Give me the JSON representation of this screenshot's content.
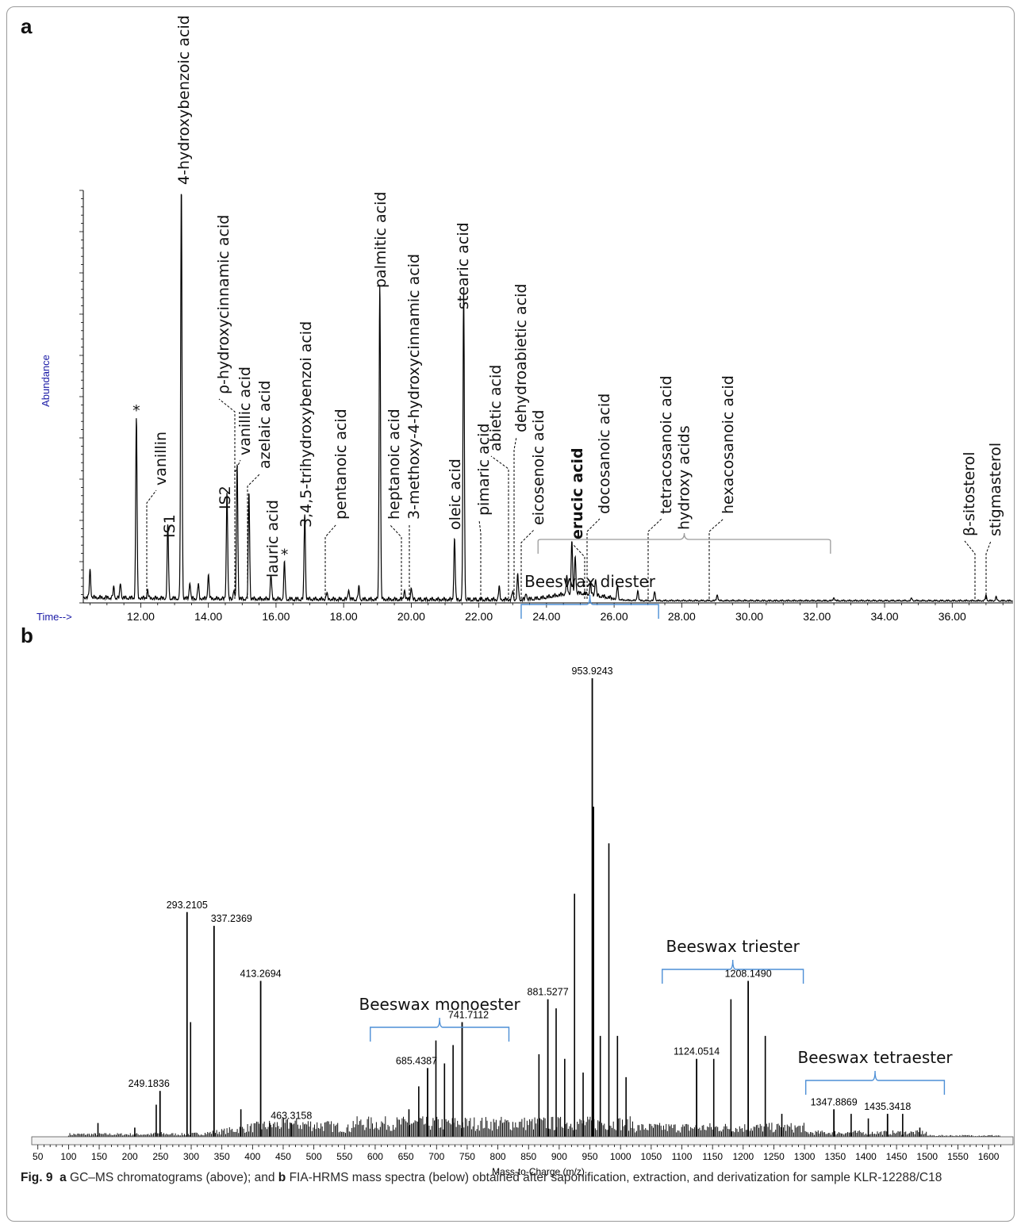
{
  "panel_a_letter": "a",
  "panel_b_letter": "b",
  "caption": {
    "figure_label": "Fig. 9",
    "part_a_letter": "a",
    "part_a_text": "GC–MS chromatograms (above); and",
    "part_b_letter": "b",
    "part_b_text": "FIA-HRMS mass spectra (below) obtained after saponification, extraction, and derivatization for sample KLR-12288/C18"
  },
  "chart_data": [
    {
      "type": "line",
      "panel": "a",
      "ylabel": "Abundance",
      "xlabel": "Time-->",
      "xlim": [
        10.3,
        37.8
      ],
      "ylim": [
        0,
        100
      ],
      "x_ticks": [
        "12.00",
        "14.00",
        "16.00",
        "18.00",
        "20.00",
        "22.00",
        "24.00",
        "26.00",
        "28.00",
        "30.00",
        "32.00",
        "34.00",
        "36.00"
      ],
      "peaks": [
        {
          "rt": 10.5,
          "height": 6.8
        },
        {
          "rt": 11.2,
          "height": 2.5
        },
        {
          "rt": 11.4,
          "height": 3.5
        },
        {
          "rt": 11.87,
          "height": 44,
          "label": "*"
        },
        {
          "rt": 12.2,
          "height": 2,
          "label": "vanillin"
        },
        {
          "rt": 12.8,
          "height": 18,
          "label": "IS1"
        },
        {
          "rt": 13.2,
          "height": 100,
          "label": "4-hydroxybenzoic acid"
        },
        {
          "rt": 13.45,
          "height": 4
        },
        {
          "rt": 13.7,
          "height": 3.5
        },
        {
          "rt": 14.0,
          "height": 6
        },
        {
          "rt": 14.55,
          "height": 26,
          "label": "IS2"
        },
        {
          "rt": 14.75,
          "height": 2,
          "label": "ρ-hydroxycinnamic acid"
        },
        {
          "rt": 14.85,
          "height": 33,
          "label": "vanillic acid"
        },
        {
          "rt": 15.2,
          "height": 26,
          "label": "azelaic acid"
        },
        {
          "rt": 15.85,
          "height": 6,
          "label": "lauric acid"
        },
        {
          "rt": 16.25,
          "height": 9,
          "label": "*"
        },
        {
          "rt": 16.85,
          "height": 21,
          "label": "3,4,5-trihydroxybenzoi acid"
        },
        {
          "rt": 17.5,
          "height": 1.5,
          "label": "pentanoic acid"
        },
        {
          "rt": 18.15,
          "height": 2.5
        },
        {
          "rt": 18.45,
          "height": 3
        },
        {
          "rt": 19.07,
          "height": 77,
          "label": "palmitic acid"
        },
        {
          "rt": 19.8,
          "height": 2.5,
          "label": "heptanoic acid"
        },
        {
          "rt": 20.0,
          "height": 3,
          "label": "3-methoxy-4-hydroxycinnamic acid"
        },
        {
          "rt": 21.28,
          "height": 15,
          "label": "oleic acid"
        },
        {
          "rt": 21.55,
          "height": 75,
          "label": "stearic acid"
        },
        {
          "rt": 22.6,
          "height": 3,
          "label": "pimaric acid"
        },
        {
          "rt": 23.0,
          "height": 2,
          "label": "abietic acid"
        },
        {
          "rt": 23.15,
          "height": 6,
          "label": "dehydroabietic acid"
        },
        {
          "rt": 23.4,
          "height": 1.5,
          "label": "eicosenoic acid"
        },
        {
          "rt": 24.6,
          "height": 4
        },
        {
          "rt": 24.75,
          "height": 13
        },
        {
          "rt": 24.85,
          "height": 9
        },
        {
          "rt": 25.3,
          "height": 2.5,
          "label": "erucic acid"
        },
        {
          "rt": 25.45,
          "height": 4,
          "label": "docosanoic acid"
        },
        {
          "rt": 26.1,
          "height": 3.5
        },
        {
          "rt": 26.7,
          "height": 2.5
        },
        {
          "rt": 27.2,
          "height": 2.2,
          "label": "tetracosanoic acid"
        },
        {
          "rt": 29.05,
          "height": 1.5,
          "label": "hexacosanoic acid"
        },
        {
          "rt": 32.5,
          "height": 0.8
        },
        {
          "rt": 34.8,
          "height": 0.6
        },
        {
          "rt": 37.0,
          "height": 1.3,
          "label": "β-sitosterol"
        },
        {
          "rt": 37.3,
          "height": 0.9,
          "label": "stigmasterol"
        }
      ],
      "bracket": {
        "label": "hydroxy acids",
        "from": 23.75,
        "to": 32.4
      }
    },
    {
      "type": "bar",
      "panel": "b",
      "xlabel": "Mass-to-Charge (m/z)",
      "xlim": [
        40,
        1640
      ],
      "ylim": [
        0,
        100
      ],
      "x_ticks": [
        "50",
        "100",
        "150",
        "200",
        "250",
        "300",
        "350",
        "400",
        "450",
        "500",
        "550",
        "600",
        "650",
        "700",
        "750",
        "800",
        "850",
        "900",
        "950",
        "1000",
        "1050",
        "1100",
        "1150",
        "1200",
        "1250",
        "1300",
        "1350",
        "1400",
        "1450",
        "1500",
        "1550",
        "1600"
      ],
      "labeled_peaks": [
        {
          "mz": 249.1836,
          "intensity": 10
        },
        {
          "mz": 293.2105,
          "intensity": 49
        },
        {
          "mz": 337.2369,
          "intensity": 46
        },
        {
          "mz": 413.2694,
          "intensity": 34
        },
        {
          "mz": 463.3158,
          "intensity": 3
        },
        {
          "mz": 685.4387,
          "intensity": 15
        },
        {
          "mz": 741.7112,
          "intensity": 25
        },
        {
          "mz": 881.5277,
          "intensity": 30
        },
        {
          "mz": 953.9243,
          "intensity": 100
        },
        {
          "mz": 1124.0514,
          "intensity": 17
        },
        {
          "mz": 1208.149,
          "intensity": 34
        },
        {
          "mz": 1347.8869,
          "intensity": 6
        },
        {
          "mz": 1435.3418,
          "intensity": 5
        }
      ],
      "other_peaks": [
        {
          "mz": 148,
          "intensity": 3
        },
        {
          "mz": 208,
          "intensity": 2
        },
        {
          "mz": 243,
          "intensity": 7
        },
        {
          "mz": 299,
          "intensity": 25
        },
        {
          "mz": 381,
          "intensity": 6
        },
        {
          "mz": 428,
          "intensity": 3
        },
        {
          "mz": 655,
          "intensity": 6
        },
        {
          "mz": 671,
          "intensity": 11
        },
        {
          "mz": 699,
          "intensity": 21
        },
        {
          "mz": 713,
          "intensity": 16
        },
        {
          "mz": 727,
          "intensity": 20
        },
        {
          "mz": 867,
          "intensity": 18
        },
        {
          "mz": 895,
          "intensity": 28
        },
        {
          "mz": 909,
          "intensity": 17
        },
        {
          "mz": 925,
          "intensity": 53
        },
        {
          "mz": 939,
          "intensity": 14
        },
        {
          "mz": 956,
          "intensity": 72
        },
        {
          "mz": 967,
          "intensity": 22
        },
        {
          "mz": 981,
          "intensity": 64
        },
        {
          "mz": 995,
          "intensity": 22
        },
        {
          "mz": 1009,
          "intensity": 13
        },
        {
          "mz": 1152,
          "intensity": 17
        },
        {
          "mz": 1180,
          "intensity": 30
        },
        {
          "mz": 1236,
          "intensity": 22
        },
        {
          "mz": 1263,
          "intensity": 5
        },
        {
          "mz": 1376,
          "intensity": 5
        },
        {
          "mz": 1404,
          "intensity": 4
        },
        {
          "mz": 1460,
          "intensity": 5
        },
        {
          "mz": 1488,
          "intensity": 2
        }
      ],
      "groups": [
        {
          "label": "Beeswax monoester",
          "from": 592,
          "to": 818
        },
        {
          "label": "Beeswax diester",
          "from": 838,
          "to": 1062
        },
        {
          "label": "Beeswax triester",
          "from": 1068,
          "to": 1298
        },
        {
          "label": "Beeswax tetraester",
          "from": 1302,
          "to": 1528
        }
      ],
      "colors": {
        "bracket_blue": "#4d8fd6",
        "axis_label_blue": "#1a1aa6"
      }
    }
  ]
}
